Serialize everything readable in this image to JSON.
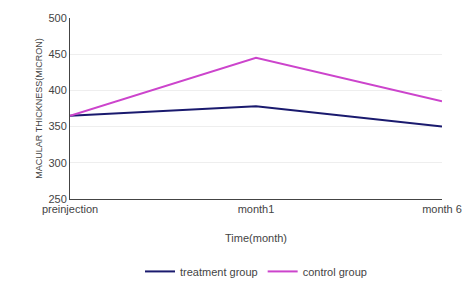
{
  "chart_data": {
    "type": "line",
    "categories": [
      "preinjection",
      "month1",
      "month 6"
    ],
    "series": [
      {
        "name": "treatment group",
        "color": "#1a1a6e",
        "values": [
          365,
          378,
          350
        ]
      },
      {
        "name": "control group",
        "color": "#cc44cc",
        "values": [
          365,
          445,
          385
        ]
      }
    ],
    "xlabel": "Time(month)",
    "ylabel": "MACULAR THICKNESS(MICRON)",
    "ylim": [
      250,
      500
    ],
    "yticks": [
      250,
      300,
      350,
      400,
      450,
      500
    ],
    "grid": true,
    "legend": "bottom"
  }
}
